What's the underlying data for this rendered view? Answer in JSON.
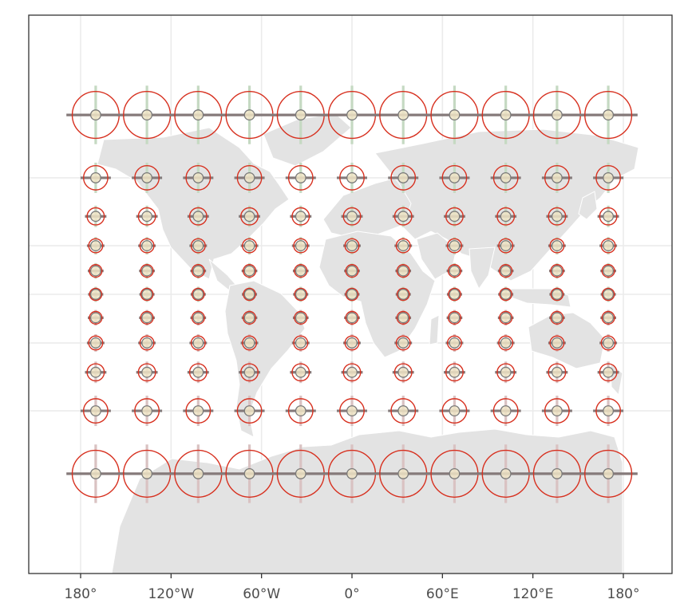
{
  "map": {
    "projection": "Mercator",
    "x_axis": {
      "tick_values": [
        -180,
        -120,
        -60,
        0,
        60,
        120,
        180
      ],
      "tick_labels": [
        "180°",
        "120°W",
        "60°W",
        "0°",
        "60°E",
        "120°E",
        "180°"
      ]
    },
    "grid": true,
    "indicatrix": {
      "longitudes": [
        -170,
        -136,
        -102,
        -68,
        -34,
        0,
        34,
        68,
        102,
        136,
        170
      ],
      "latitudes": [
        75,
        60,
        45,
        30,
        15,
        0,
        -15,
        -30,
        -45,
        -60,
        -75
      ]
    },
    "colors": {
      "panel_background": "#ffffff",
      "grid": "#ebebeb",
      "land": "#e3e3e3",
      "country_border": "#ffffff",
      "ellipse": "#d7301f",
      "ew_bar": "#857a7a",
      "ns_bar_north": "#c5d9c2",
      "ns_bar_south": "#d9c2c2",
      "center_dot": "#efe4c6",
      "axis": "#333333"
    }
  }
}
